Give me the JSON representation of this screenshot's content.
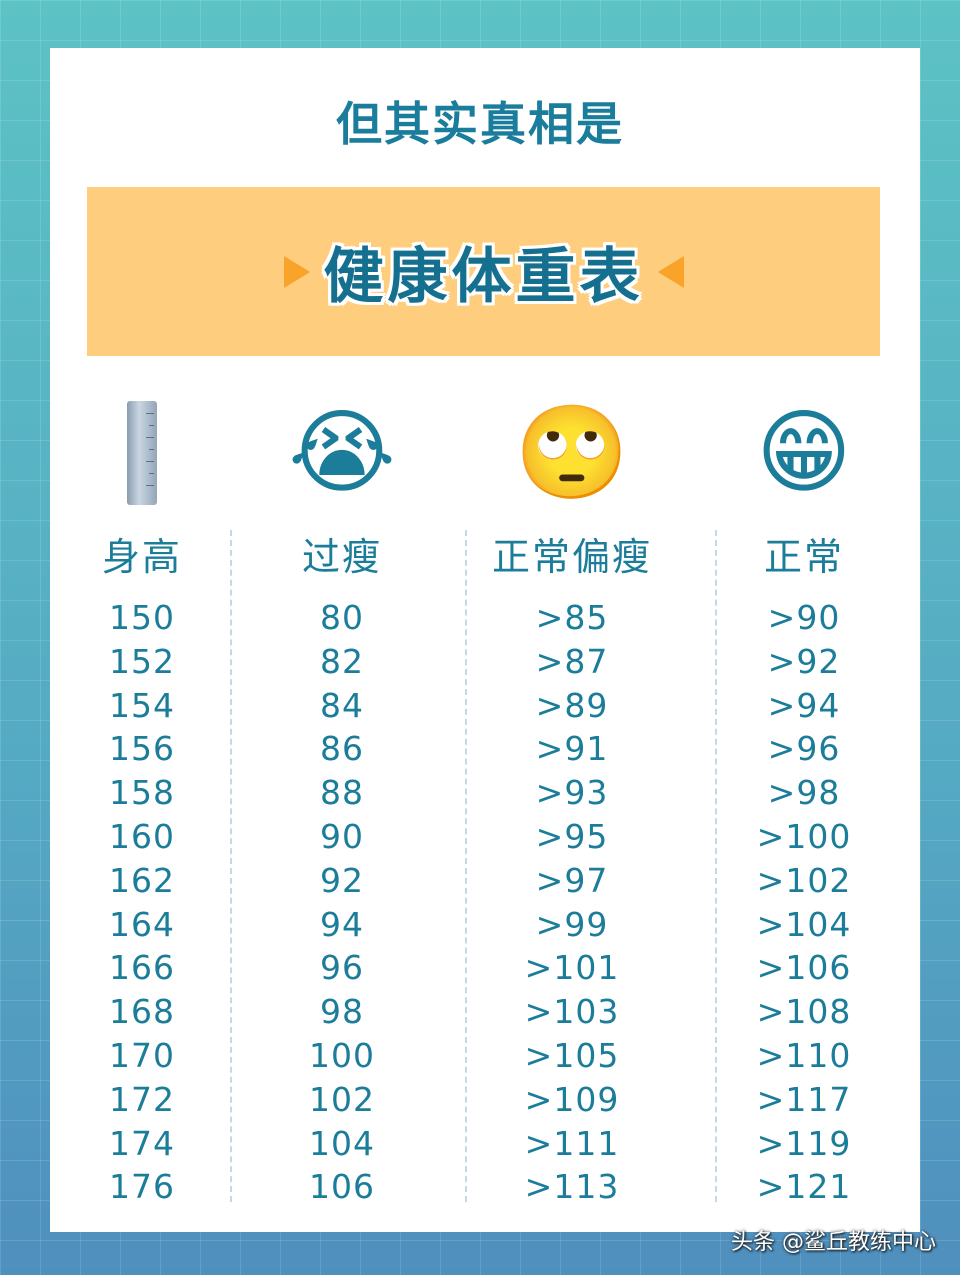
{
  "title": "但其实真相是",
  "banner_title": "健康体重表",
  "columns": [
    {
      "header": "身高",
      "icon": "ruler-icon",
      "values": [
        "150",
        "152",
        "154",
        "156",
        "158",
        "160",
        "162",
        "164",
        "166",
        "168",
        "170",
        "172",
        "174",
        "176"
      ]
    },
    {
      "header": "过瘦",
      "icon": "loudly-crying-face-icon",
      "values": [
        "80",
        "82",
        "84",
        "86",
        "88",
        "90",
        "92",
        "94",
        "96",
        "98",
        "100",
        "102",
        "104",
        "106"
      ]
    },
    {
      "header": "正常偏瘦",
      "icon": "eye-roll-face-icon",
      "values": [
        ">85",
        ">87",
        ">89",
        ">91",
        ">93",
        ">95",
        ">97",
        ">99",
        ">101",
        ">103",
        ">105",
        ">109",
        ">111",
        ">113"
      ]
    },
    {
      "header": "正常",
      "icon": "grinning-face-icon",
      "values": [
        ">90",
        ">92",
        ">94",
        ">96",
        ">98",
        ">100",
        ">102",
        ">104",
        ">106",
        ">108",
        ">110",
        ">117",
        ">119",
        ">121"
      ]
    }
  ],
  "watermark": "头条 @鲨丘教练中心",
  "colors": {
    "text": "#1c7d9a",
    "banner": "#ffcd7e",
    "accent": "#f9a428",
    "background": "#5cc2c4"
  }
}
